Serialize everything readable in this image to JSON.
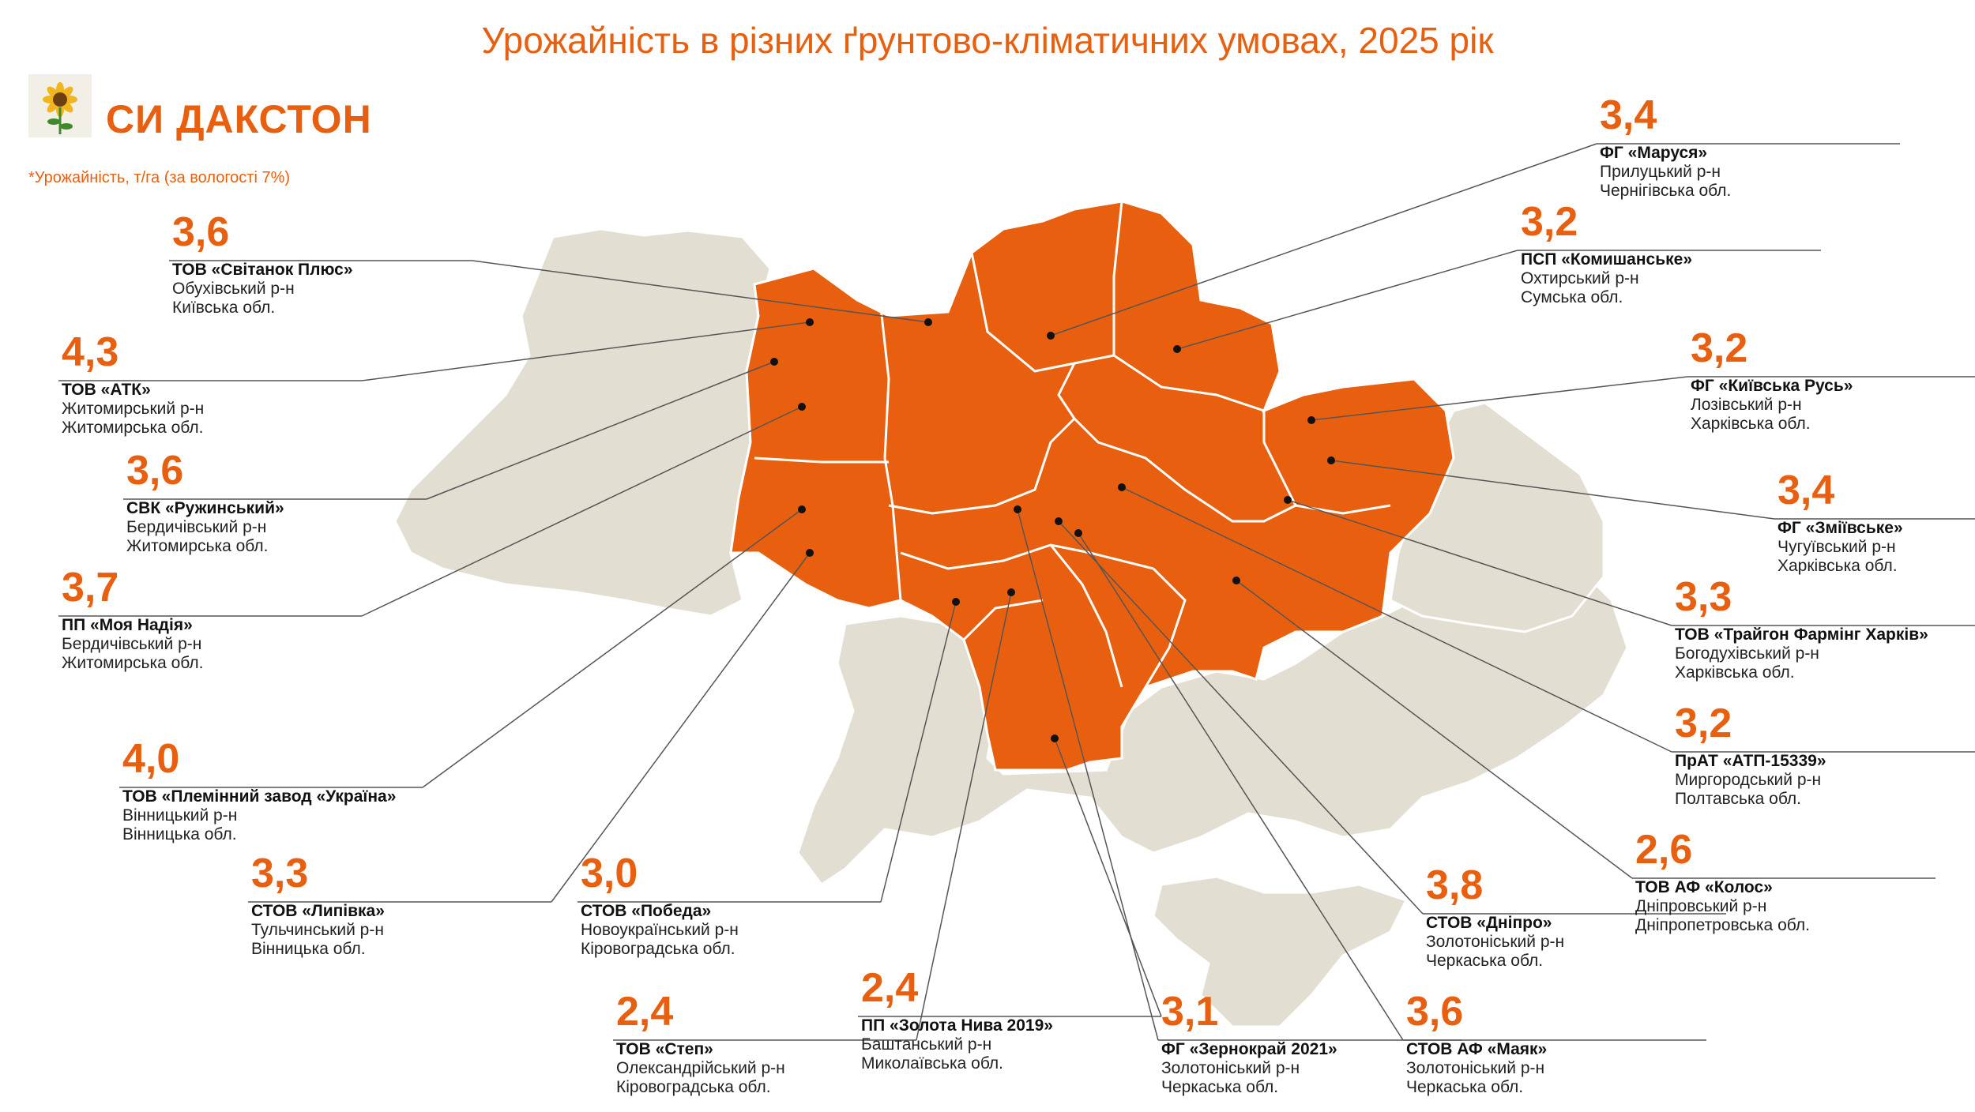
{
  "title": "Урожайність в різних ґрунтово-кліматичних умовах, 2025 рік",
  "brand": {
    "name": "СИ ДАКСТОН",
    "logo_icon": "sunflower-icon"
  },
  "footnote": "*Урожайність, т/га (за вологості 7%)",
  "colors": {
    "accent": "#e8600f",
    "region_highlight": "#e8600f",
    "region_base": "#e2dfd2",
    "border": "#ffffff",
    "leader_line": "#555555"
  },
  "farms": [
    {
      "yield": "3,6",
      "name": "ТОВ «Світанок Плюс»",
      "district": "Обухівський р-н",
      "region": "Київська обл."
    },
    {
      "yield": "4,3",
      "name": "ТОВ «АТК»",
      "district": "Житомирський р-н",
      "region": "Житомирська обл."
    },
    {
      "yield": "3,6",
      "name": "СВК «Ружинський»",
      "district": "Бердичівський р-н",
      "region": "Житомирська обл."
    },
    {
      "yield": "3,7",
      "name": "ПП «Моя Надія»",
      "district": "Бердичівський р-н",
      "region": "Житомирська обл."
    },
    {
      "yield": "4,0",
      "name": "ТОВ «Племінний завод «Україна»",
      "district": "Вінницький р-н",
      "region": "Вінницька обл."
    },
    {
      "yield": "3,3",
      "name": "СТОВ «Липівка»",
      "district": "Тульчинський р-н",
      "region": "Вінницька обл."
    },
    {
      "yield": "3,0",
      "name": "СТОВ «Победа»",
      "district": "Новоукраїнський р-н",
      "region": "Кіровоградська обл."
    },
    {
      "yield": "2,4",
      "name": "ТОВ «Степ»",
      "district": "Олександрійський р-н",
      "region": "Кіровоградська обл."
    },
    {
      "yield": "2,4",
      "name": "ПП «Золота Нива 2019»",
      "district": "Баштанський р-н",
      "region": "Миколаївська обл."
    },
    {
      "yield": "3,1",
      "name": "ФГ «Зернокрай 2021»",
      "district": "Золотоніський р-н",
      "region": "Черкаська обл."
    },
    {
      "yield": "3,6",
      "name": "СТОВ АФ «Маяк»",
      "district": "Золотоніський р-н",
      "region": "Черкаська обл."
    },
    {
      "yield": "3,8",
      "name": "СТОВ «Дніпро»",
      "district": "Золотоніський р-н",
      "region": "Черкаська обл."
    },
    {
      "yield": "2,6",
      "name": "ТОВ АФ «Колос»",
      "district": "Дніпровський р-н",
      "region": "Дніпропетровська обл."
    },
    {
      "yield": "3,2",
      "name": "ПрАТ «АТП-15339»",
      "district": "Миргородський р-н",
      "region": "Полтавська обл."
    },
    {
      "yield": "3,3",
      "name": "ТОВ «Трайгон Фармінг Харків»",
      "district": "Богодухівський р-н",
      "region": "Харківська обл."
    },
    {
      "yield": "3,4",
      "name": "ФГ «Зміївське»",
      "district": "Чугуївський р-н",
      "region": "Харківська обл."
    },
    {
      "yield": "3,2",
      "name": "ФГ «Київська Русь»",
      "district": "Лозівський р-н",
      "region": "Харківська обл."
    },
    {
      "yield": "3,2",
      "name": "ПСП «Комишанське»",
      "district": "Охтирський р-н",
      "region": "Сумська обл."
    },
    {
      "yield": "3,4",
      "name": "ФГ «Маруся»",
      "district": "Прилуцький р-н",
      "region": "Чернігівська обл."
    }
  ]
}
